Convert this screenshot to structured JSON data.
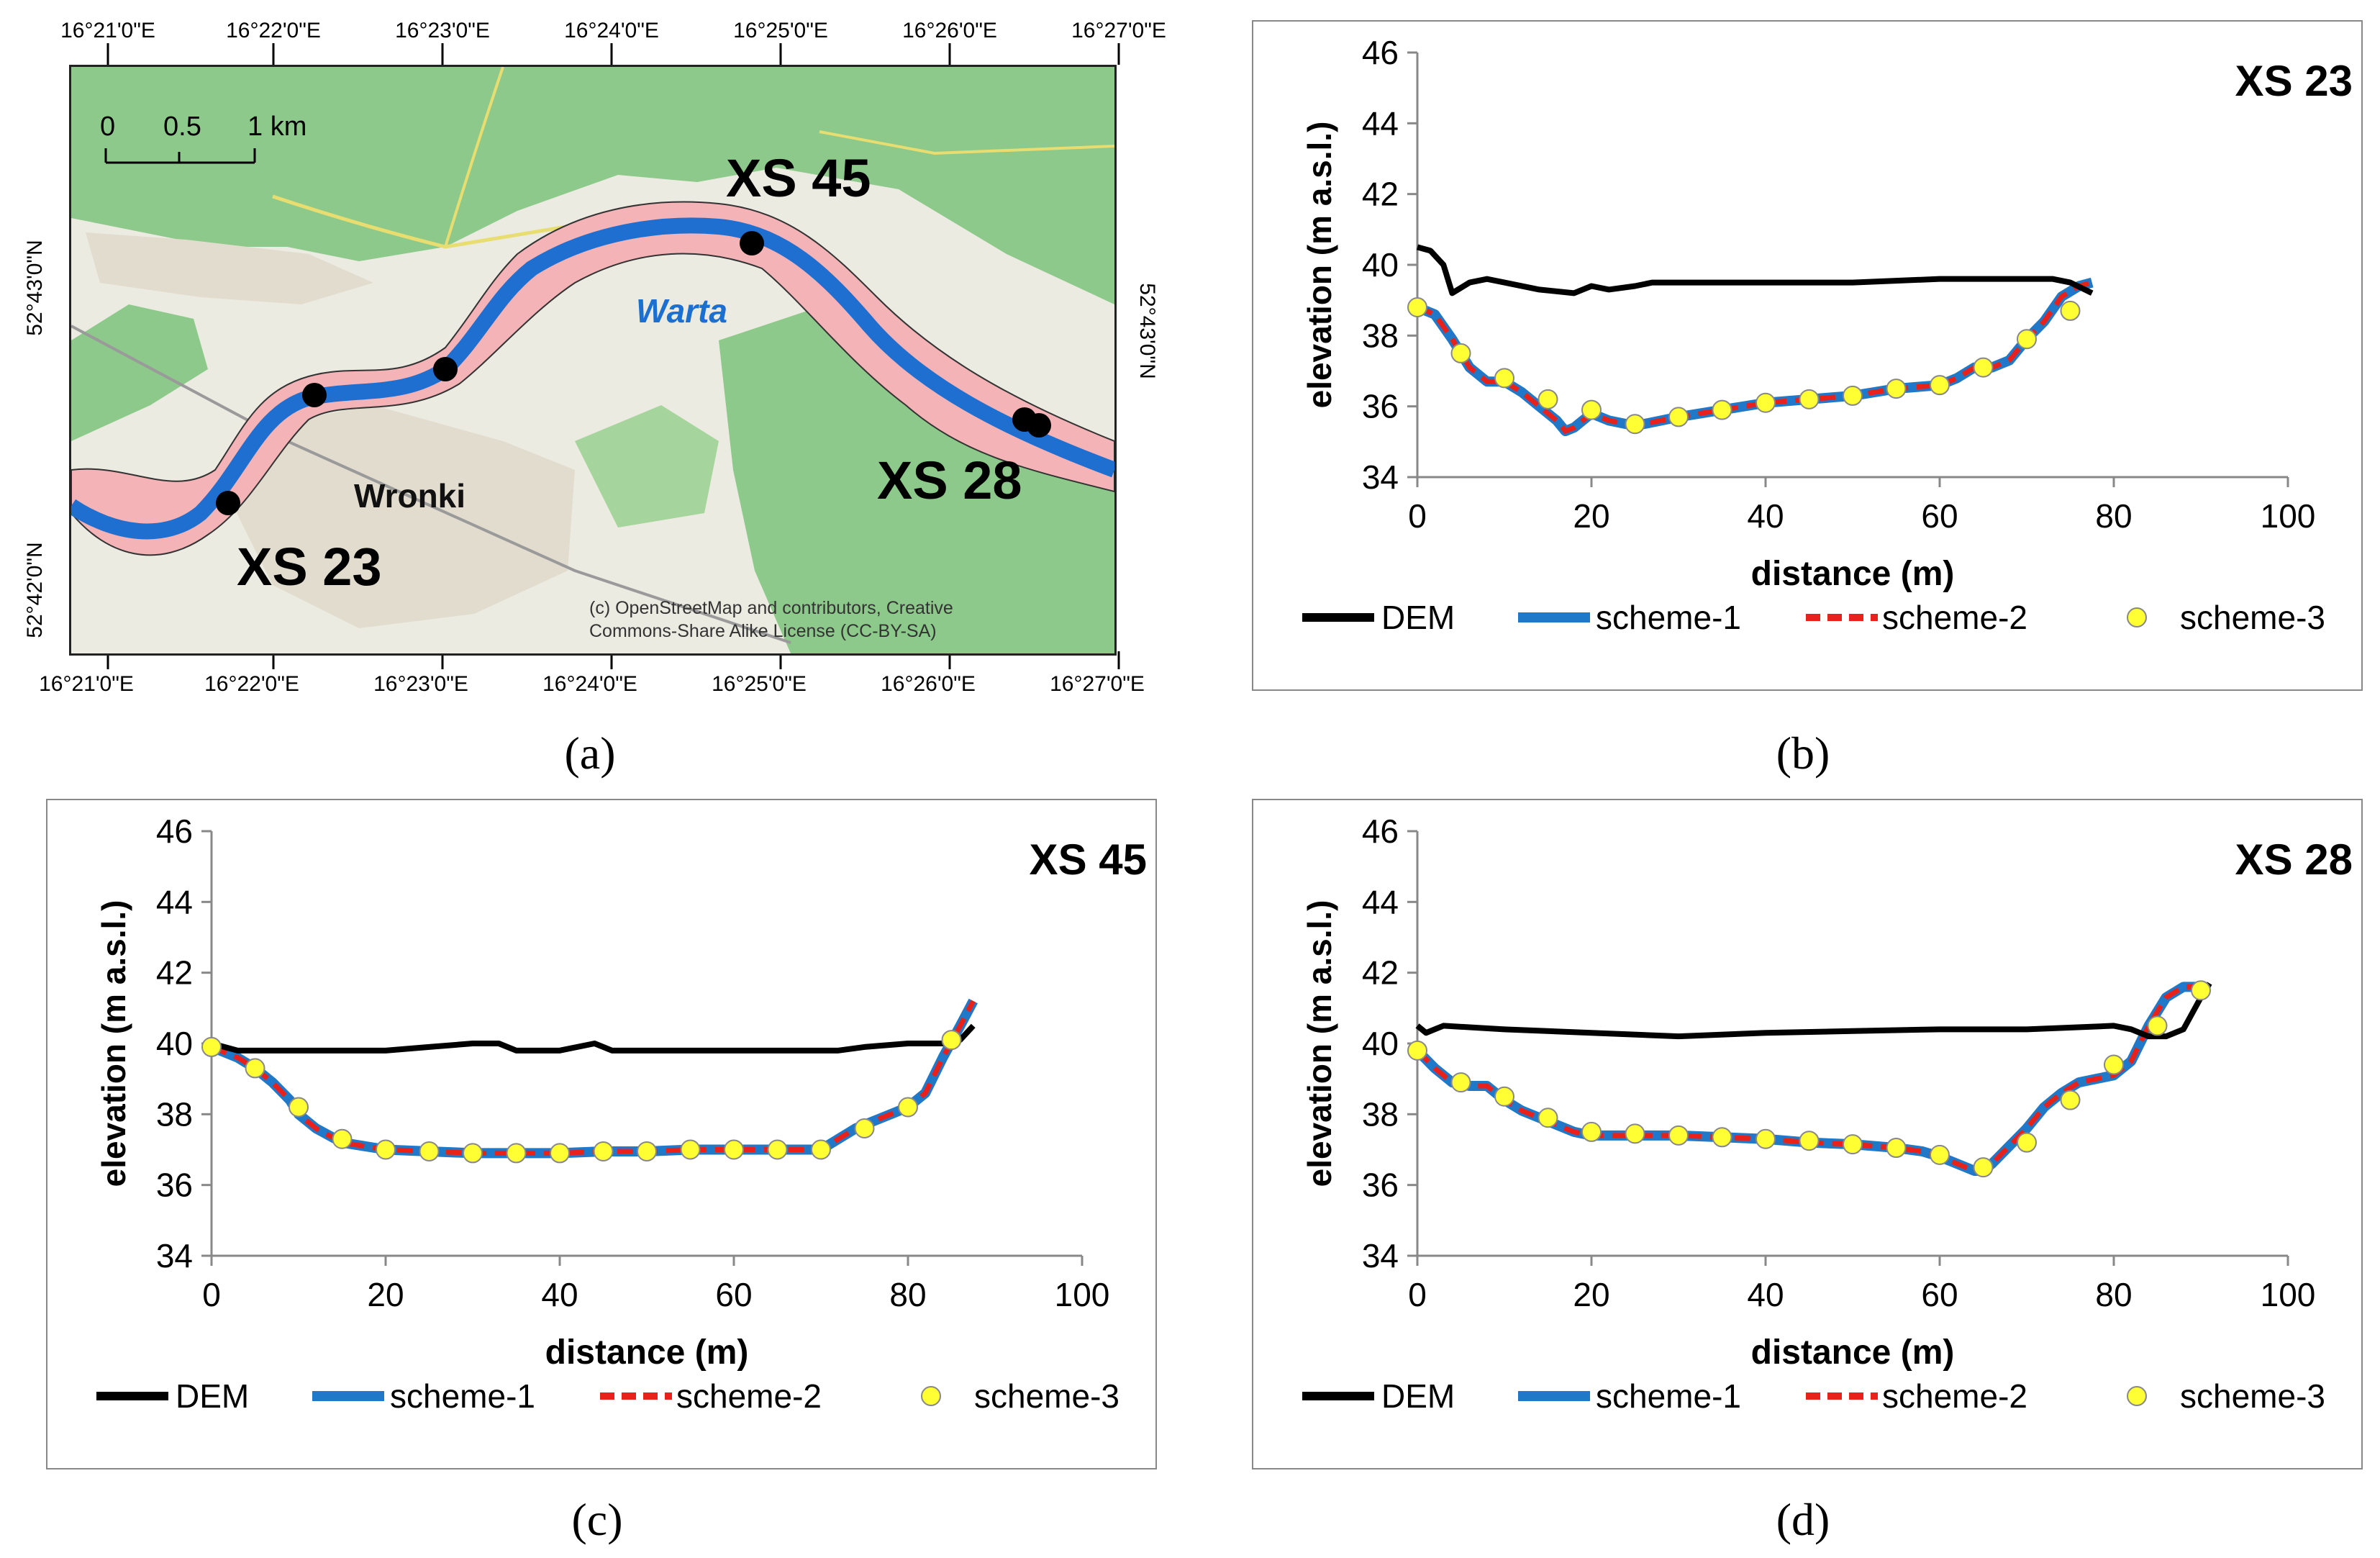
{
  "captions": {
    "a": "(a)",
    "b": "(b)",
    "c": "(c)",
    "d": "(d)"
  },
  "map": {
    "lon_labels_top": [
      "16°21'0\"E",
      "16°22'0\"E",
      "16°23'0\"E",
      "16°24'0\"E",
      "16°25'0\"E",
      "16°26'0\"E",
      "16°27'0\"E"
    ],
    "lon_labels_bottom": [
      "16°21'0\"E",
      "16°22'0\"E",
      "16°23'0\"E",
      "16°24'0\"E",
      "16°25'0\"E",
      "16°26'0\"E",
      "16°27'0\"E"
    ],
    "lat_labels_left": [
      "52°43'0\"N",
      "52°42'0\"N"
    ],
    "lat_labels_right": [
      "52°43'0\"N"
    ],
    "scale": {
      "zero": "0",
      "half": "0.5",
      "one": "1 km"
    },
    "river_label": "Warta",
    "town_label": "Wronki",
    "markers": {
      "xs45": "XS 45",
      "xs23": "XS 23",
      "xs28": "XS 28"
    },
    "attribution": [
      "(c) OpenStreetMap and contributors, Creative",
      "Commons-Share Alike License (CC-BY-SA)"
    ],
    "colors": {
      "forest": "#8cc98a",
      "urban": "#e6e1d4",
      "floodplain": "#f4b3b6",
      "river": "#1f6fd0",
      "background": "#ecebe1"
    }
  },
  "legend": {
    "dem": "DEM",
    "scheme1": "scheme-1",
    "scheme2": "scheme-2",
    "scheme3": "scheme-3"
  },
  "chart_data": [
    {
      "type": "line",
      "panel": "b",
      "title": "XS 23",
      "xlabel": "distance (m)",
      "ylabel": "elevation (m a.s.l.)",
      "xlim": [
        0,
        100
      ],
      "ylim": [
        34,
        46
      ],
      "xticks": [
        "0",
        "20",
        "40",
        "60",
        "80",
        "100"
      ],
      "yticks": [
        "34",
        "36",
        "38",
        "40",
        "42",
        "44",
        "46"
      ],
      "colors": {
        "dem": "#000000",
        "scheme1": "#1f78c8",
        "scheme2": "#e8211b",
        "scheme3": "#ffff33"
      },
      "series": [
        {
          "name": "DEM",
          "x": [
            0,
            1.5,
            3,
            4,
            6,
            8,
            10,
            14,
            18,
            20,
            22,
            25,
            27,
            30,
            40,
            50,
            60,
            70,
            73,
            75,
            77.5
          ],
          "y": [
            40.5,
            40.4,
            40.0,
            39.2,
            39.5,
            39.6,
            39.5,
            39.3,
            39.2,
            39.4,
            39.3,
            39.4,
            39.5,
            39.5,
            39.5,
            39.5,
            39.6,
            39.6,
            39.6,
            39.5,
            39.2
          ]
        },
        {
          "name": "scheme-1",
          "x": [
            0,
            2,
            4,
            6,
            8,
            10,
            12,
            14,
            16,
            17,
            18,
            20,
            22,
            24,
            26,
            28,
            30,
            35,
            40,
            45,
            50,
            55,
            60,
            62,
            64,
            66,
            68,
            70,
            72,
            74,
            76,
            77.5
          ],
          "y": [
            38.8,
            38.6,
            37.9,
            37.1,
            36.7,
            36.7,
            36.4,
            36.0,
            35.6,
            35.3,
            35.4,
            35.8,
            35.6,
            35.5,
            35.5,
            35.6,
            35.7,
            35.9,
            36.1,
            36.2,
            36.3,
            36.5,
            36.6,
            36.8,
            37.1,
            37.1,
            37.3,
            37.9,
            38.4,
            39.1,
            39.4,
            39.5
          ]
        },
        {
          "name": "scheme-2",
          "x": [
            0,
            2,
            4,
            6,
            8,
            10,
            12,
            14,
            16,
            17,
            18,
            20,
            22,
            24,
            26,
            28,
            30,
            35,
            40,
            45,
            50,
            55,
            60,
            62,
            64,
            66,
            68,
            70,
            72,
            74,
            76,
            77.5
          ],
          "y": [
            38.8,
            38.6,
            37.9,
            37.1,
            36.7,
            36.7,
            36.4,
            36.0,
            35.6,
            35.3,
            35.4,
            35.8,
            35.6,
            35.5,
            35.5,
            35.6,
            35.7,
            35.9,
            36.1,
            36.2,
            36.3,
            36.5,
            36.6,
            36.8,
            37.1,
            37.1,
            37.3,
            37.9,
            38.4,
            39.1,
            39.4,
            39.5
          ]
        },
        {
          "name": "scheme-3",
          "x": [
            0,
            5,
            10,
            15,
            20,
            25,
            30,
            35,
            40,
            45,
            50,
            55,
            60,
            65,
            70,
            75
          ],
          "y": [
            38.8,
            37.5,
            36.8,
            36.2,
            35.9,
            35.5,
            35.7,
            35.9,
            36.1,
            36.2,
            36.3,
            36.5,
            36.6,
            37.1,
            37.9,
            38.7
          ]
        }
      ]
    },
    {
      "type": "line",
      "panel": "c",
      "title": "XS 45",
      "xlabel": "distance (m)",
      "ylabel": "elevation (m a.s.l.)",
      "xlim": [
        0,
        100
      ],
      "ylim": [
        34,
        46
      ],
      "xticks": [
        "0",
        "20",
        "40",
        "60",
        "80",
        "100"
      ],
      "yticks": [
        "34",
        "36",
        "38",
        "40",
        "42",
        "44",
        "46"
      ],
      "colors": {
        "dem": "#000000",
        "scheme1": "#1f78c8",
        "scheme2": "#e8211b",
        "scheme3": "#ffff33"
      },
      "series": [
        {
          "name": "DEM",
          "x": [
            0,
            3,
            6,
            10,
            15,
            20,
            25,
            30,
            33,
            35,
            40,
            44,
            46,
            50,
            60,
            70,
            72,
            75,
            80,
            84,
            86,
            87.5
          ],
          "y": [
            40.0,
            39.8,
            39.8,
            39.8,
            39.8,
            39.8,
            39.9,
            40.0,
            40.0,
            39.8,
            39.8,
            40.0,
            39.8,
            39.8,
            39.8,
            39.8,
            39.8,
            39.9,
            40.0,
            40.0,
            40.1,
            40.5
          ]
        },
        {
          "name": "scheme-1",
          "x": [
            0,
            3,
            5,
            7,
            9,
            10,
            12,
            15,
            20,
            25,
            30,
            35,
            40,
            45,
            50,
            55,
            60,
            65,
            70,
            72,
            74,
            76,
            78,
            80,
            82,
            84,
            86,
            87.5
          ],
          "y": [
            39.9,
            39.6,
            39.3,
            38.9,
            38.4,
            38.0,
            37.6,
            37.2,
            37.0,
            36.95,
            36.9,
            36.9,
            36.9,
            36.95,
            36.95,
            37.0,
            37.0,
            37.0,
            37.0,
            37.3,
            37.6,
            37.8,
            38.0,
            38.2,
            38.6,
            39.6,
            40.5,
            41.2
          ]
        },
        {
          "name": "scheme-2",
          "x": [
            0,
            3,
            5,
            7,
            9,
            10,
            12,
            15,
            20,
            25,
            30,
            35,
            40,
            45,
            50,
            55,
            60,
            65,
            70,
            72,
            74,
            76,
            78,
            80,
            82,
            84,
            86,
            87.5
          ],
          "y": [
            39.9,
            39.6,
            39.3,
            38.9,
            38.4,
            38.0,
            37.6,
            37.2,
            37.0,
            36.95,
            36.9,
            36.9,
            36.9,
            36.95,
            36.95,
            37.0,
            37.0,
            37.0,
            37.0,
            37.3,
            37.6,
            37.8,
            38.0,
            38.2,
            38.6,
            39.6,
            40.5,
            41.2
          ]
        },
        {
          "name": "scheme-3",
          "x": [
            0,
            5,
            10,
            15,
            20,
            25,
            30,
            35,
            40,
            45,
            50,
            55,
            60,
            65,
            70,
            75,
            80,
            85
          ],
          "y": [
            39.9,
            39.3,
            38.2,
            37.3,
            37.0,
            36.95,
            36.9,
            36.9,
            36.9,
            36.95,
            36.95,
            37.0,
            37.0,
            37.0,
            37.0,
            37.6,
            38.2,
            40.1
          ]
        }
      ]
    },
    {
      "type": "line",
      "panel": "d",
      "title": "XS 28",
      "xlabel": "distance (m)",
      "ylabel": "elevation (m a.s.l.)",
      "xlim": [
        0,
        100
      ],
      "ylim": [
        34,
        46
      ],
      "xticks": [
        "0",
        "20",
        "40",
        "60",
        "80",
        "100"
      ],
      "yticks": [
        "34",
        "36",
        "38",
        "40",
        "42",
        "44",
        "46"
      ],
      "colors": {
        "dem": "#000000",
        "scheme1": "#1f78c8",
        "scheme2": "#e8211b",
        "scheme3": "#ffff33"
      },
      "series": [
        {
          "name": "DEM",
          "x": [
            0,
            1,
            2,
            3,
            10,
            20,
            30,
            40,
            50,
            60,
            70,
            80,
            82,
            84,
            86,
            88,
            90,
            91
          ],
          "y": [
            40.5,
            40.3,
            40.4,
            40.5,
            40.4,
            40.3,
            40.2,
            40.3,
            40.35,
            40.4,
            40.4,
            40.5,
            40.4,
            40.2,
            40.2,
            40.4,
            41.3,
            41.7
          ]
        },
        {
          "name": "scheme-1",
          "x": [
            0,
            2,
            4,
            6,
            8,
            10,
            12,
            15,
            18,
            20,
            25,
            30,
            35,
            40,
            45,
            50,
            55,
            58,
            60,
            62,
            64,
            65,
            66,
            68,
            70,
            72,
            74,
            76,
            78,
            80,
            82,
            84,
            86,
            88,
            90,
            91
          ],
          "y": [
            39.8,
            39.3,
            38.9,
            38.8,
            38.8,
            38.4,
            38.1,
            37.8,
            37.5,
            37.4,
            37.4,
            37.4,
            37.35,
            37.3,
            37.2,
            37.15,
            37.05,
            36.95,
            36.8,
            36.6,
            36.4,
            36.4,
            36.6,
            37.1,
            37.6,
            38.2,
            38.6,
            38.9,
            39.0,
            39.1,
            39.5,
            40.5,
            41.3,
            41.6,
            41.6,
            41.5
          ]
        },
        {
          "name": "scheme-2",
          "x": [
            0,
            2,
            4,
            6,
            8,
            10,
            12,
            15,
            18,
            20,
            25,
            30,
            35,
            40,
            45,
            50,
            55,
            58,
            60,
            62,
            64,
            65,
            66,
            68,
            70,
            72,
            74,
            76,
            78,
            80,
            82,
            84,
            86,
            88,
            90,
            91
          ],
          "y": [
            39.8,
            39.3,
            38.9,
            38.8,
            38.8,
            38.4,
            38.1,
            37.8,
            37.5,
            37.4,
            37.4,
            37.4,
            37.35,
            37.3,
            37.2,
            37.15,
            37.05,
            36.95,
            36.8,
            36.6,
            36.4,
            36.4,
            36.6,
            37.1,
            37.6,
            38.2,
            38.6,
            38.9,
            39.0,
            39.1,
            39.5,
            40.5,
            41.3,
            41.6,
            41.6,
            41.5
          ]
        },
        {
          "name": "scheme-3",
          "x": [
            0,
            5,
            10,
            15,
            20,
            25,
            30,
            35,
            40,
            45,
            50,
            55,
            60,
            65,
            70,
            75,
            80,
            85,
            90
          ],
          "y": [
            39.8,
            38.9,
            38.5,
            37.9,
            37.5,
            37.45,
            37.4,
            37.35,
            37.3,
            37.25,
            37.15,
            37.05,
            36.85,
            36.5,
            37.2,
            38.4,
            39.4,
            40.5,
            41.5
          ]
        }
      ]
    }
  ]
}
